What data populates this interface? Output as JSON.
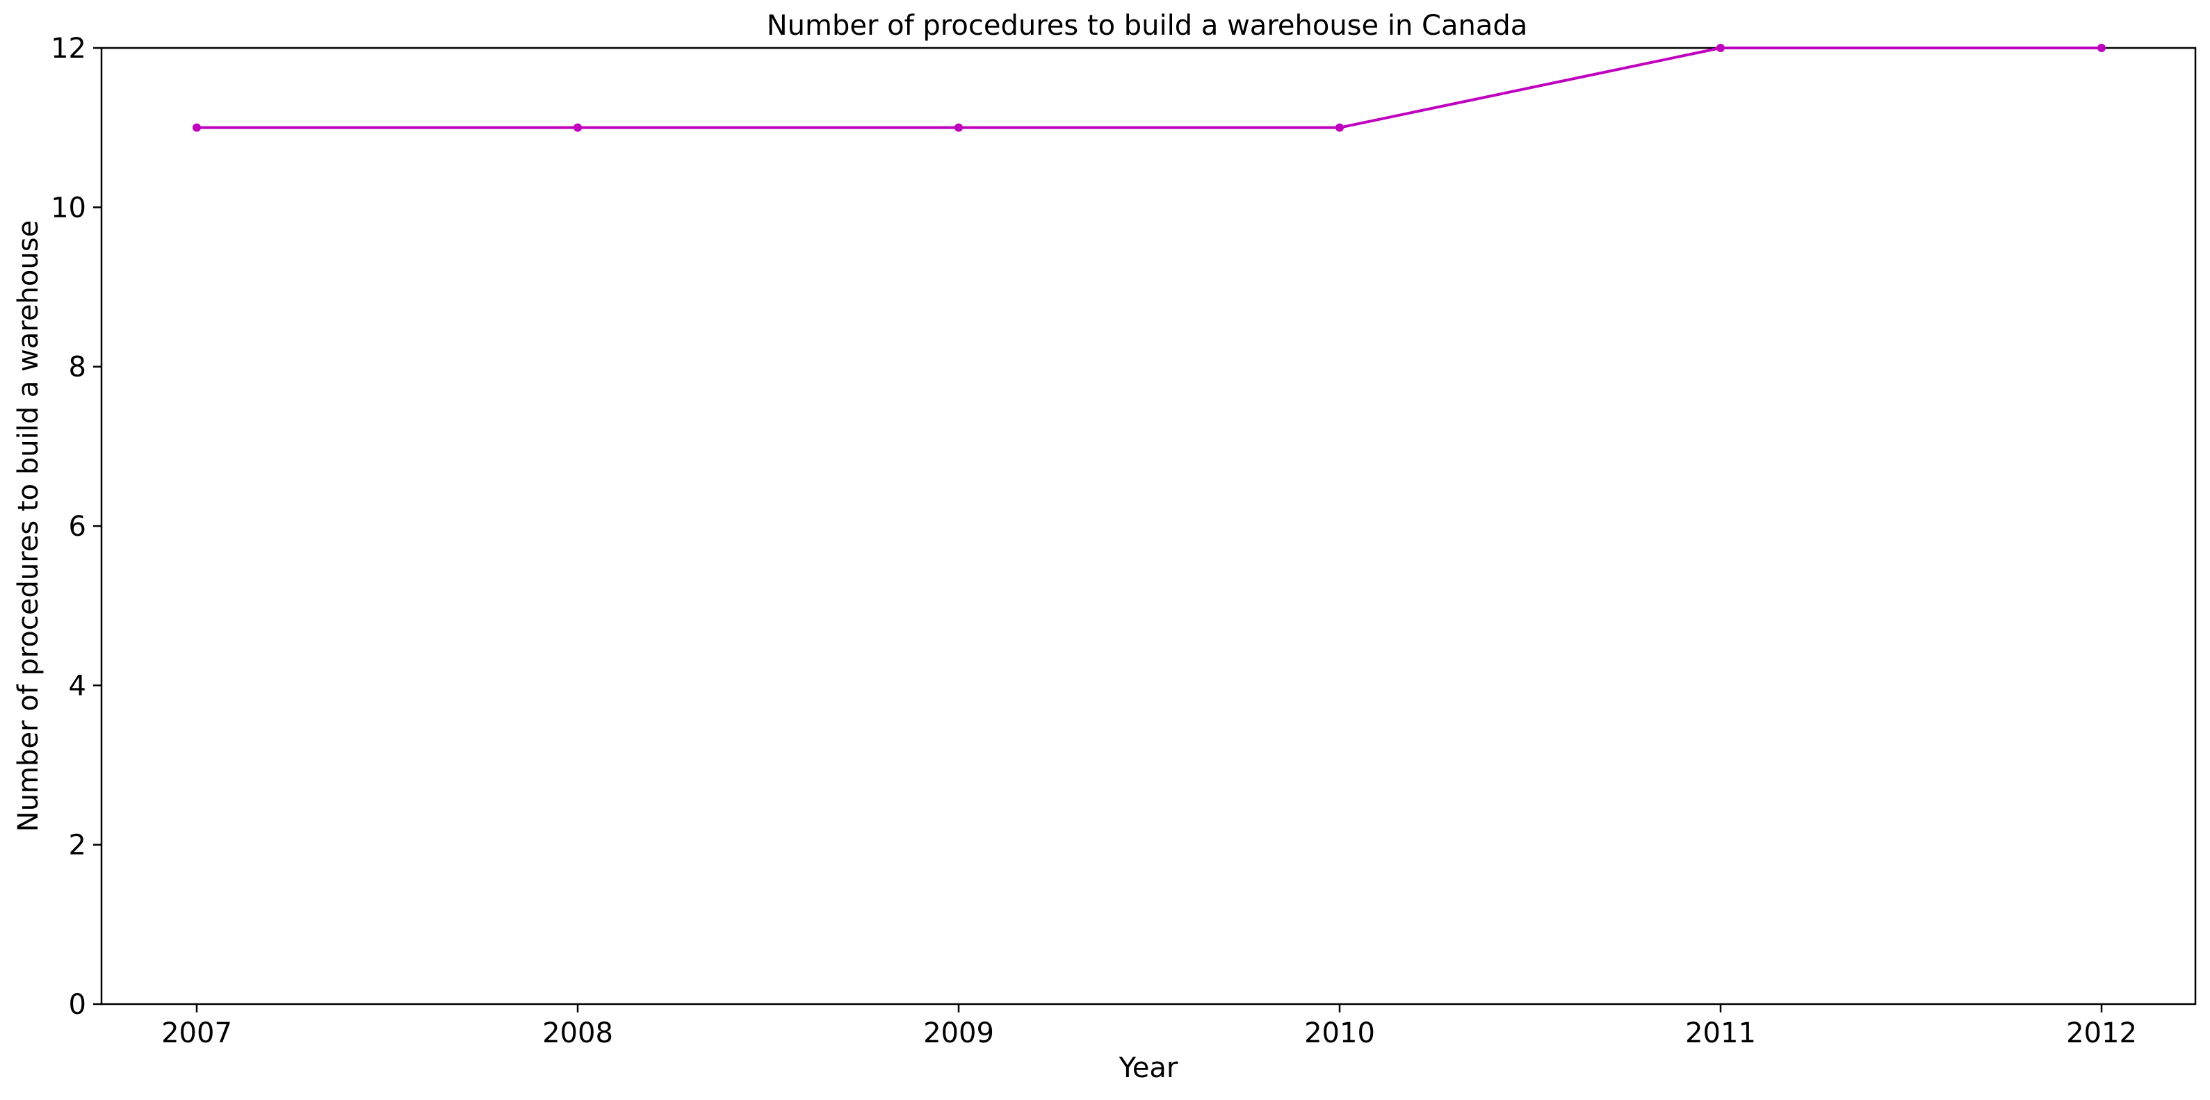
{
  "chart_data": {
    "type": "line",
    "title": "Number of procedures to build a warehouse in Canada",
    "xlabel": "Year",
    "ylabel": "Number of procedures to build a warehouse",
    "x": [
      "2007",
      "2008",
      "2009",
      "2010",
      "2011",
      "2012"
    ],
    "series": [
      {
        "values": [
          11,
          11,
          11,
          11,
          12,
          12
        ],
        "color": "#bf00bf"
      }
    ],
    "ylim": [
      0,
      12
    ],
    "yticks": [
      0,
      2,
      4,
      6,
      8,
      10,
      12
    ],
    "grid": false,
    "legend": "none"
  }
}
